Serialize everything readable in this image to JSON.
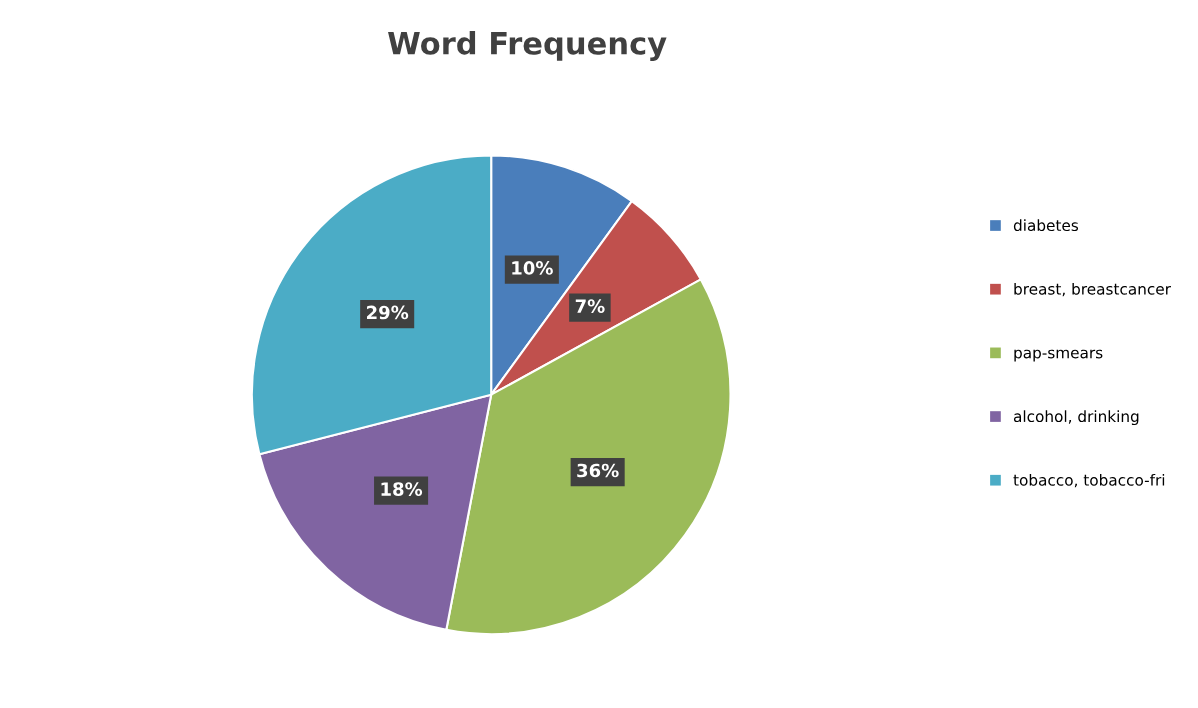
{
  "chart_data": {
    "type": "pie",
    "title": "Word Frequency",
    "categories": [
      "diabetes",
      "breast, breastcancer",
      "pap-smears",
      "alcohol, drinking",
      "tobacco, tobacco-fri"
    ],
    "values": [
      10,
      7,
      36,
      18,
      29
    ],
    "colors": [
      "#4a7ebb",
      "#c0504d",
      "#9bbb59",
      "#8064a2",
      "#4bacc6"
    ],
    "value_labels": [
      "10%",
      "7%",
      "36%",
      "18%",
      "29%"
    ],
    "legend": "right"
  }
}
